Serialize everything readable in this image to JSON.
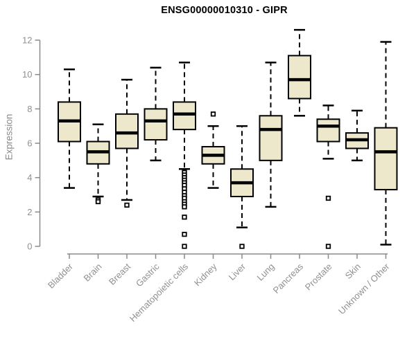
{
  "chart_data": {
    "type": "boxplot",
    "title": "ENSG00000010310 - GIPR",
    "xlabel": "",
    "ylabel": "Expression",
    "ylim": [
      0,
      12
    ],
    "yticks": [
      0,
      2,
      4,
      6,
      8,
      10,
      12
    ],
    "grid": false,
    "legend": "none",
    "categories": [
      "Bladder",
      "Brain",
      "Breast",
      "Gastric",
      "Hematopoietic cells",
      "Kidney",
      "Liver",
      "Lung",
      "Pancreas",
      "Prostate",
      "Skin",
      "Unknown / Other"
    ],
    "series": [
      {
        "name": "Bladder",
        "low": 3.4,
        "q1": 6.1,
        "median": 7.3,
        "q3": 8.4,
        "high": 10.3,
        "outliers": []
      },
      {
        "name": "Brain",
        "low": 2.9,
        "q1": 4.8,
        "median": 5.5,
        "q3": 6.1,
        "high": 7.1,
        "outliers": [
          2.7,
          2.6
        ]
      },
      {
        "name": "Breast",
        "low": 2.7,
        "q1": 5.7,
        "median": 6.6,
        "q3": 7.7,
        "high": 9.7,
        "outliers": [
          2.4
        ]
      },
      {
        "name": "Gastric",
        "low": 5.0,
        "q1": 6.2,
        "median": 7.3,
        "q3": 8.0,
        "high": 10.4,
        "outliers": []
      },
      {
        "name": "Hematopoietic cells",
        "low": 4.5,
        "q1": 6.8,
        "median": 7.7,
        "q3": 8.4,
        "high": 10.7,
        "outliers": [
          4.3,
          4.15,
          4.0,
          3.85,
          3.7,
          3.55,
          3.35,
          3.15,
          2.95,
          2.8,
          2.6,
          2.45,
          2.3,
          1.7,
          0.7,
          0.0
        ]
      },
      {
        "name": "Kidney",
        "low": 3.4,
        "q1": 4.8,
        "median": 5.3,
        "q3": 5.8,
        "high": 7.0,
        "outliers": [
          7.7
        ]
      },
      {
        "name": "Liver",
        "low": 1.1,
        "q1": 2.9,
        "median": 3.7,
        "q3": 4.5,
        "high": 7.0,
        "outliers": [
          0.0
        ]
      },
      {
        "name": "Lung",
        "low": 2.3,
        "q1": 5.0,
        "median": 6.8,
        "q3": 7.6,
        "high": 10.7,
        "outliers": []
      },
      {
        "name": "Pancreas",
        "low": 7.6,
        "q1": 8.6,
        "median": 9.7,
        "q3": 11.1,
        "high": 12.6,
        "outliers": []
      },
      {
        "name": "Prostate",
        "low": 5.1,
        "q1": 6.1,
        "median": 7.0,
        "q3": 7.4,
        "high": 8.2,
        "outliers": [
          2.8,
          0.0
        ]
      },
      {
        "name": "Skin",
        "low": 5.0,
        "q1": 5.7,
        "median": 6.2,
        "q3": 6.6,
        "high": 7.9,
        "outliers": []
      },
      {
        "name": "Unknown / Other",
        "low": 0.1,
        "q1": 3.3,
        "median": 5.5,
        "q3": 6.9,
        "high": 11.9,
        "outliers": []
      }
    ],
    "colors": {
      "box_fill": "#EDE7CB",
      "box_stroke": "#000000",
      "median": "#000000",
      "whisker": "#000000",
      "outlier_stroke": "#000000",
      "outlier_fill": "#ffffff",
      "axis": "#8a8a8a",
      "tick_label": "#909090",
      "title": "#000000"
    }
  }
}
